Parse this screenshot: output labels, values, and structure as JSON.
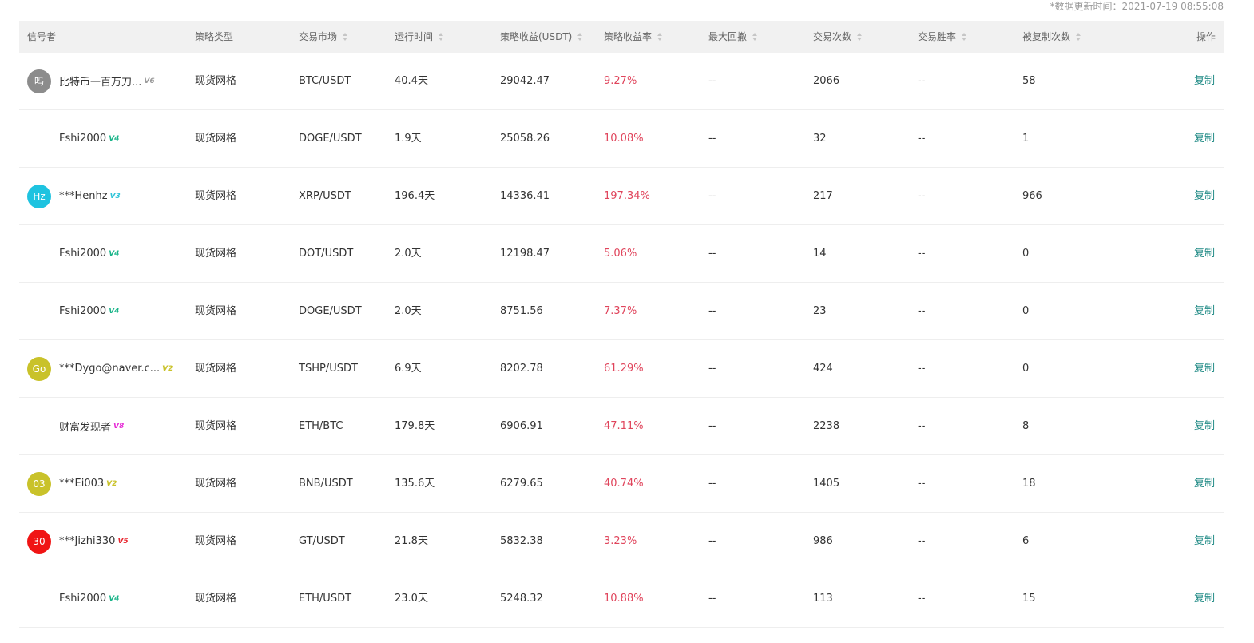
{
  "update_time": "*数据更新时间：2021-07-19 08:55:08",
  "columns": {
    "signaler": "信号者",
    "strategy_type": "策略类型",
    "market": "交易市场",
    "run_time": "运行时间",
    "profit": "策略收益(USDT)",
    "rate": "策略收益率",
    "max_drawdown": "最大回撤",
    "trades": "交易次数",
    "win_rate": "交易胜率",
    "copies": "被复制次数",
    "action": "操作"
  },
  "colors": {
    "rate_red": "#e0455c",
    "link_teal": "#1f8a85",
    "header_bg": "#f1f1f1"
  },
  "rows": [
    {
      "avatar": "吗",
      "avatar_color": "#8c8c8c",
      "name": "比特币一百万刀...",
      "badge": "V6",
      "badge_color": "#9a9a9a",
      "type": "现货网格",
      "market": "BTC/USDT",
      "time": "40.4天",
      "profit": "29042.47",
      "rate": "9.27%",
      "dd": "--",
      "trades": "2066",
      "win": "--",
      "copies": "58",
      "action": "复制"
    },
    {
      "avatar": "",
      "avatar_color": "",
      "name": "Fshi2000",
      "badge": "V4",
      "badge_color": "#1bb58a",
      "type": "现货网格",
      "market": "DOGE/USDT",
      "time": "1.9天",
      "profit": "25058.26",
      "rate": "10.08%",
      "dd": "--",
      "trades": "32",
      "win": "--",
      "copies": "1",
      "action": "复制"
    },
    {
      "avatar": "Hz",
      "avatar_color": "#1ec3e0",
      "name": "***Henhz",
      "badge": "V3",
      "badge_color": "#2ec4d8",
      "type": "现货网格",
      "market": "XRP/USDT",
      "time": "196.4天",
      "profit": "14336.41",
      "rate": "197.34%",
      "dd": "--",
      "trades": "217",
      "win": "--",
      "copies": "966",
      "action": "复制"
    },
    {
      "avatar": "",
      "avatar_color": "",
      "name": "Fshi2000",
      "badge": "V4",
      "badge_color": "#1bb58a",
      "type": "现货网格",
      "market": "DOT/USDT",
      "time": "2.0天",
      "profit": "12198.47",
      "rate": "5.06%",
      "dd": "--",
      "trades": "14",
      "win": "--",
      "copies": "0",
      "action": "复制"
    },
    {
      "avatar": "",
      "avatar_color": "",
      "name": "Fshi2000",
      "badge": "V4",
      "badge_color": "#1bb58a",
      "type": "现货网格",
      "market": "DOGE/USDT",
      "time": "2.0天",
      "profit": "8751.56",
      "rate": "7.37%",
      "dd": "--",
      "trades": "23",
      "win": "--",
      "copies": "0",
      "action": "复制"
    },
    {
      "avatar": "Go",
      "avatar_color": "#c9c22a",
      "name": "***Dygo@naver.c...",
      "badge": "V2",
      "badge_color": "#c9c22a",
      "type": "现货网格",
      "market": "TSHP/USDT",
      "time": "6.9天",
      "profit": "8202.78",
      "rate": "61.29%",
      "dd": "--",
      "trades": "424",
      "win": "--",
      "copies": "0",
      "action": "复制"
    },
    {
      "avatar": "",
      "avatar_color": "",
      "name": "财富发现者",
      "badge": "V8",
      "badge_color": "#e62ad6",
      "type": "现货网格",
      "market": "ETH/BTC",
      "time": "179.8天",
      "profit": "6906.91",
      "rate": "47.11%",
      "dd": "--",
      "trades": "2238",
      "win": "--",
      "copies": "8",
      "action": "复制"
    },
    {
      "avatar": "03",
      "avatar_color": "#c9c22a",
      "name": "***Ei003",
      "badge": "V2",
      "badge_color": "#c9c22a",
      "type": "现货网格",
      "market": "BNB/USDT",
      "time": "135.6天",
      "profit": "6279.65",
      "rate": "40.74%",
      "dd": "--",
      "trades": "1405",
      "win": "--",
      "copies": "18",
      "action": "复制"
    },
    {
      "avatar": "30",
      "avatar_color": "#f01414",
      "name": "***Jizhi330",
      "badge": "V5",
      "badge_color": "#e8262f",
      "type": "现货网格",
      "market": "GT/USDT",
      "time": "21.8天",
      "profit": "5832.38",
      "rate": "3.23%",
      "dd": "--",
      "trades": "986",
      "win": "--",
      "copies": "6",
      "action": "复制"
    },
    {
      "avatar": "",
      "avatar_color": "",
      "name": "Fshi2000",
      "badge": "V4",
      "badge_color": "#1bb58a",
      "type": "现货网格",
      "market": "ETH/USDT",
      "time": "23.0天",
      "profit": "5248.32",
      "rate": "10.88%",
      "dd": "--",
      "trades": "113",
      "win": "--",
      "copies": "15",
      "action": "复制"
    }
  ]
}
